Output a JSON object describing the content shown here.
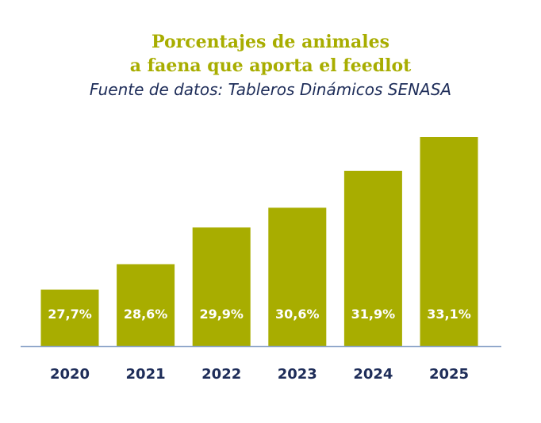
{
  "chart_data": {
    "type": "bar",
    "title_lines": [
      "Porcentajes de animales",
      "a faena que aporta el feedlot"
    ],
    "subtitle": "Fuente de datos: Tableros Dinámicos SENASA",
    "categories": [
      "2020",
      "2021",
      "2022",
      "2023",
      "2024",
      "2025"
    ],
    "values": [
      27.7,
      28.6,
      29.9,
      30.6,
      31.9,
      33.1
    ],
    "value_labels": [
      "27,7%",
      "28,6%",
      "29,9%",
      "30,6%",
      "31,9%",
      "33,1%"
    ],
    "xlabel": "",
    "ylabel": "",
    "ylim": [
      25.7,
      33.1
    ],
    "grid": false,
    "legend": "none"
  },
  "colors": {
    "bar": "#a8ad00",
    "title": "#a8ad00",
    "subtitle": "#1e2d59",
    "axis": "#8aa3c8",
    "category_label": "#1e2d59",
    "value_label": "#ffffff"
  }
}
